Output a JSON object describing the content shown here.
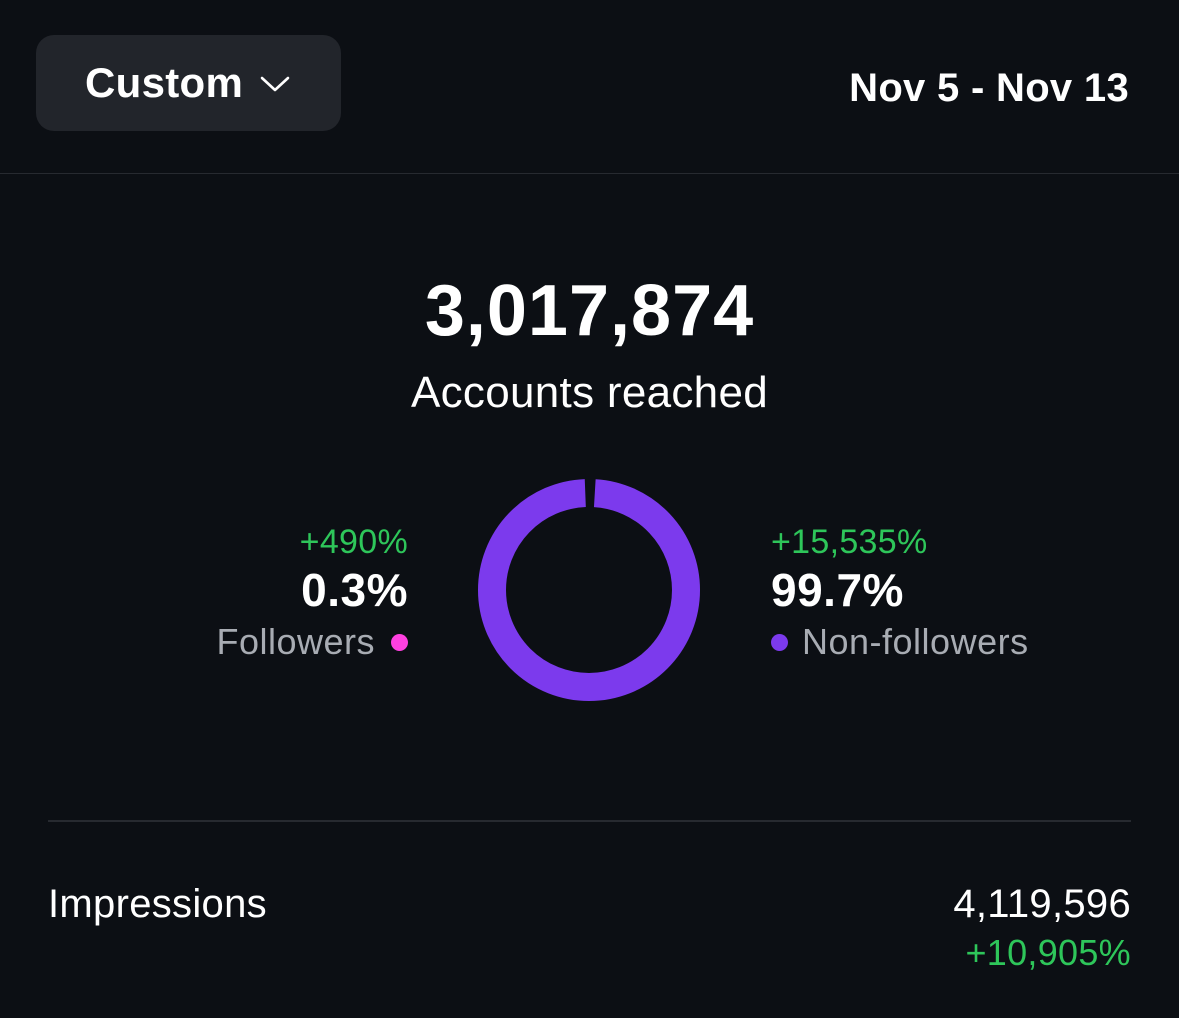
{
  "header": {
    "range_label": "Custom",
    "dropdown_icon": "chevron-down-icon",
    "date_range": "Nov 5 - Nov 13"
  },
  "reach": {
    "total": "3,017,874",
    "label": "Accounts reached"
  },
  "breakdown": {
    "followers": {
      "change": "+490%",
      "share": "0.3%",
      "label": "Followers",
      "color": "#ff40e0"
    },
    "non_followers": {
      "change": "+15,535%",
      "share": "99.7%",
      "label": "Non-followers",
      "color": "#7c3aed"
    }
  },
  "chart_data": {
    "type": "pie",
    "categories": [
      "Followers",
      "Non-followers"
    ],
    "values": [
      0.3,
      99.7
    ],
    "colors": [
      "#ff40e0",
      "#7c3aed"
    ],
    "title": "",
    "legend": "left-right"
  },
  "impressions": {
    "label": "Impressions",
    "value": "4,119,596",
    "change": "+10,905%"
  },
  "colors": {
    "background": "#0c0f14",
    "positive": "#2ec65a",
    "button_bg": "#22252b"
  }
}
